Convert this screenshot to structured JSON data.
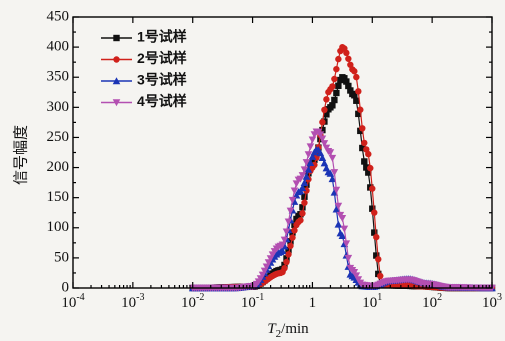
{
  "chart_data": {
    "type": "line",
    "x_scale": "log",
    "xlim": [
      0.0001,
      1000
    ],
    "ylim": [
      0,
      450
    ],
    "xlabel": "T2/min",
    "xlabel_main": "T",
    "xlabel_sub": "2",
    "xlabel_unit": "/min",
    "ylabel": "信号幅度",
    "x_tick_labels": [
      {
        "base": "10",
        "exp": "-4"
      },
      {
        "base": "10",
        "exp": "-3"
      },
      {
        "base": "10",
        "exp": "-2"
      },
      {
        "base": "10",
        "exp": "-1"
      },
      {
        "base": "1",
        "exp": ""
      },
      {
        "base": "10",
        "exp": "1"
      },
      {
        "base": "10",
        "exp": "2"
      },
      {
        "base": "10",
        "exp": "3"
      }
    ],
    "y_ticks": [
      "0",
      "50",
      "100",
      "150",
      "200",
      "250",
      "300",
      "350",
      "400",
      "450"
    ],
    "legend_position": "top-left",
    "grid": false,
    "series": [
      {
        "name": "1号试样",
        "color": "#111111",
        "marker": "square",
        "x": [
          0.01,
          0.1,
          0.3,
          0.6,
          1.0,
          2.0,
          3.2,
          5.0,
          8.0,
          14.0,
          30.0,
          60.0,
          200.0,
          1000.0
        ],
        "y": [
          0,
          2,
          30,
          120,
          210,
          300,
          350,
          320,
          200,
          5,
          4,
          3,
          0,
          0
        ]
      },
      {
        "name": "2号试样",
        "color": "#d0211b",
        "marker": "circle",
        "x": [
          0.01,
          0.1,
          0.3,
          0.6,
          1.0,
          2.0,
          3.2,
          5.0,
          8.0,
          15.0,
          30.0,
          60.0,
          200.0,
          1000.0
        ],
        "y": [
          0,
          2,
          25,
          110,
          200,
          330,
          400,
          360,
          230,
          5,
          6,
          3,
          0,
          0
        ]
      },
      {
        "name": "3号试样",
        "color": "#1b34b5",
        "marker": "triangle-up",
        "x": [
          0.01,
          0.05,
          0.1,
          0.3,
          0.6,
          1.2,
          2.0,
          3.0,
          4.5,
          7.0,
          10.0,
          20.0,
          40.0,
          80.0,
          200.0,
          1000.0
        ],
        "y": [
          0,
          0,
          3,
          60,
          160,
          230,
          190,
          90,
          20,
          3,
          2,
          12,
          15,
          8,
          1,
          0
        ]
      },
      {
        "name": "4号试样",
        "color": "#b34fb1",
        "marker": "triangle-down",
        "x": [
          0.01,
          0.05,
          0.1,
          0.3,
          0.6,
          1.2,
          2.0,
          3.0,
          4.5,
          7.0,
          10.0,
          20.0,
          40.0,
          80.0,
          200.0,
          1000.0
        ],
        "y": [
          0,
          0,
          3,
          70,
          180,
          260,
          225,
          120,
          30,
          5,
          3,
          12,
          14,
          7,
          1,
          0
        ]
      }
    ]
  }
}
